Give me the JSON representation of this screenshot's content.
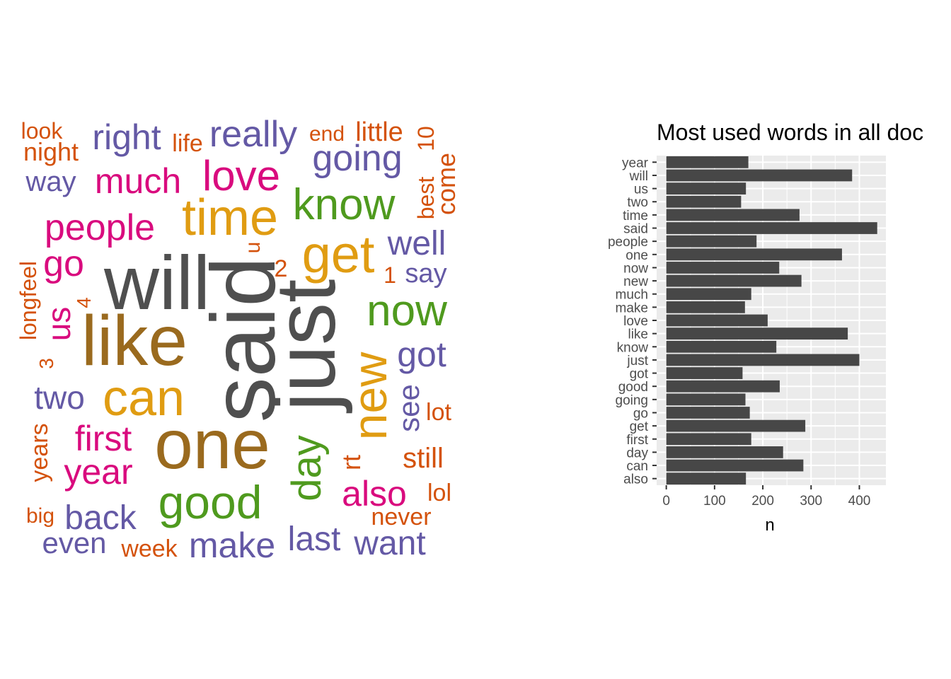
{
  "word_cloud": {
    "palette": {
      "gray": "#4f4f4f",
      "brown": "#9a6a1e",
      "gold": "#e09c12",
      "green": "#4f9a1e",
      "magenta": "#d90b7e",
      "purple": "#6459a5",
      "orange": "#d4520c"
    },
    "words": [
      {
        "text": "said",
        "color": "gray"
      },
      {
        "text": "just",
        "color": "gray"
      },
      {
        "text": "will",
        "color": "gray"
      },
      {
        "text": "like",
        "color": "brown"
      },
      {
        "text": "one",
        "color": "brown"
      },
      {
        "text": "can",
        "color": "gold"
      },
      {
        "text": "get",
        "color": "gold"
      },
      {
        "text": "time",
        "color": "gold"
      },
      {
        "text": "new",
        "color": "gold"
      },
      {
        "text": "know",
        "color": "green"
      },
      {
        "text": "now",
        "color": "green"
      },
      {
        "text": "good",
        "color": "green"
      },
      {
        "text": "day",
        "color": "green"
      },
      {
        "text": "people",
        "color": "magenta"
      },
      {
        "text": "love",
        "color": "magenta"
      },
      {
        "text": "much",
        "color": "magenta"
      },
      {
        "text": "go",
        "color": "magenta"
      },
      {
        "text": "us",
        "color": "magenta"
      },
      {
        "text": "first",
        "color": "magenta"
      },
      {
        "text": "year",
        "color": "magenta"
      },
      {
        "text": "also",
        "color": "magenta"
      },
      {
        "text": "right",
        "color": "purple"
      },
      {
        "text": "really",
        "color": "purple"
      },
      {
        "text": "going",
        "color": "purple"
      },
      {
        "text": "way",
        "color": "purple"
      },
      {
        "text": "well",
        "color": "purple"
      },
      {
        "text": "say",
        "color": "purple"
      },
      {
        "text": "got",
        "color": "purple"
      },
      {
        "text": "see",
        "color": "purple"
      },
      {
        "text": "two",
        "color": "purple"
      },
      {
        "text": "back",
        "color": "purple"
      },
      {
        "text": "even",
        "color": "purple"
      },
      {
        "text": "make",
        "color": "purple"
      },
      {
        "text": "last",
        "color": "purple"
      },
      {
        "text": "want",
        "color": "purple"
      },
      {
        "text": "look",
        "color": "orange"
      },
      {
        "text": "night",
        "color": "orange"
      },
      {
        "text": "life",
        "color": "orange"
      },
      {
        "text": "end",
        "color": "orange"
      },
      {
        "text": "little",
        "color": "orange"
      },
      {
        "text": "10",
        "color": "orange"
      },
      {
        "text": "best",
        "color": "orange"
      },
      {
        "text": "come",
        "color": "orange"
      },
      {
        "text": "u",
        "color": "orange"
      },
      {
        "text": "2",
        "color": "orange"
      },
      {
        "text": "1",
        "color": "orange"
      },
      {
        "text": "longfeel",
        "color": "orange"
      },
      {
        "text": "4",
        "color": "orange"
      },
      {
        "text": "3",
        "color": "orange"
      },
      {
        "text": "lot",
        "color": "orange"
      },
      {
        "text": "years",
        "color": "orange"
      },
      {
        "text": "rt",
        "color": "orange"
      },
      {
        "text": "still",
        "color": "orange"
      },
      {
        "text": "lol",
        "color": "orange"
      },
      {
        "text": "big",
        "color": "orange"
      },
      {
        "text": "never",
        "color": "orange"
      },
      {
        "text": "week",
        "color": "orange"
      }
    ]
  },
  "chart_data": {
    "type": "bar",
    "orientation": "horizontal",
    "title": "Most used words in all doc",
    "xlabel": "n",
    "ylabel": "",
    "xlim": [
      0,
      455
    ],
    "xticks": [
      0,
      100,
      200,
      300,
      400
    ],
    "bar_color": "#474747",
    "panel_color": "#ebebeb",
    "grid": true,
    "categories": [
      "year",
      "will",
      "us",
      "two",
      "time",
      "said",
      "people",
      "one",
      "now",
      "new",
      "much",
      "make",
      "love",
      "like",
      "know",
      "just",
      "got",
      "good",
      "going",
      "go",
      "get",
      "first",
      "day",
      "can",
      "also"
    ],
    "values": [
      170,
      385,
      165,
      155,
      276,
      437,
      187,
      364,
      234,
      280,
      176,
      163,
      210,
      376,
      228,
      400,
      158,
      235,
      164,
      173,
      288,
      176,
      242,
      284,
      165
    ]
  }
}
